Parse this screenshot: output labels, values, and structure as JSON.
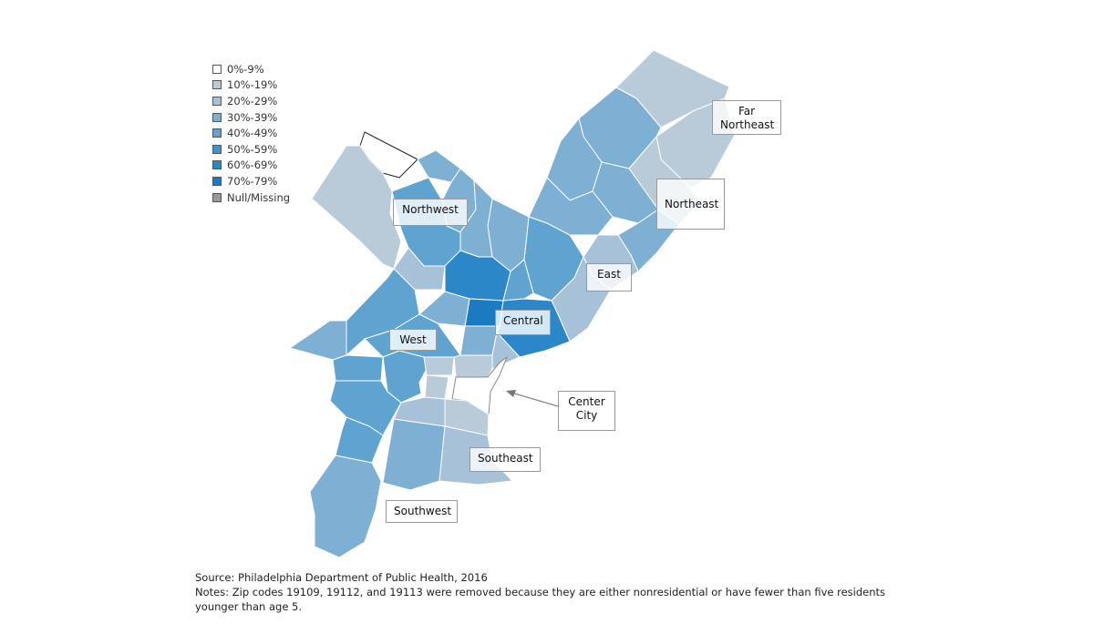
{
  "legend": {
    "items": [
      {
        "label": "0%-9%",
        "color": "#ffffff"
      },
      {
        "label": "10%-19%",
        "color": "#b9cbd8"
      },
      {
        "label": "20%-29%",
        "color": "#a7c1d9"
      },
      {
        "label": "30%-39%",
        "color": "#7eb0d3"
      },
      {
        "label": "40%-49%",
        "color": "#5fa3d0"
      },
      {
        "label": "50%-59%",
        "color": "#3d93cc"
      },
      {
        "label": "60%-69%",
        "color": "#2b87c8"
      },
      {
        "label": "70%-79%",
        "color": "#1a7bc0"
      },
      {
        "label": "Null/Missing",
        "color": "#999999"
      }
    ]
  },
  "regions": {
    "far_northeast": "Far\nNortheast",
    "northwest": "Northwest",
    "northeast": "Northeast",
    "east": "East",
    "central": "Central",
    "west": "West",
    "center_city": "Center\nCity",
    "southeast": "Southeast",
    "southwest": "Southwest"
  },
  "notes": {
    "source": "Source: Philadelphia Department of Public Health, 2016",
    "note": "Notes: Zip codes 19109, 19112, and 19113 were removed because they are either nonresidential or have fewer than five residents younger than age 5."
  }
}
